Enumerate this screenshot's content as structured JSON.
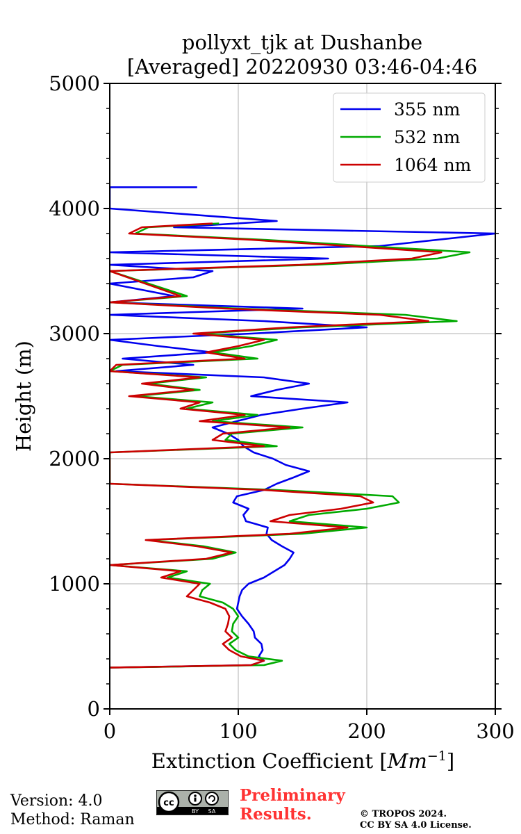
{
  "chart_data": {
    "type": "line",
    "title_line1": "pollyxt_tjk at Dushanbe",
    "title_line2": "[Averaged] 20220930 03:46-04:46",
    "xlabel": "Extinction Coefficient [",
    "xlabel_unit": "Mm",
    "xlabel_exp": "−1",
    "xlabel_close": "]",
    "ylabel": "Height (m)",
    "xlim": [
      0,
      300
    ],
    "ylim": [
      0,
      5000
    ],
    "xticks": [
      0,
      100,
      200,
      300
    ],
    "yticks": [
      0,
      1000,
      2000,
      3000,
      4000,
      5000
    ],
    "xtick_labels": [
      "0",
      "100",
      "200",
      "300"
    ],
    "ytick_labels": [
      "0",
      "1000",
      "2000",
      "3000",
      "4000",
      "5000"
    ],
    "grid": true,
    "legend_position": "top-right",
    "series": [
      {
        "name": "355 nm",
        "color": "#0000ee",
        "points": [
          [
            0,
            330
          ],
          [
            110,
            350
          ],
          [
            120,
            385
          ],
          [
            116,
            420
          ],
          [
            119,
            470
          ],
          [
            118,
            520
          ],
          [
            113,
            570
          ],
          [
            112,
            620
          ],
          [
            108,
            680
          ],
          [
            103,
            740
          ],
          [
            99,
            800
          ],
          [
            100,
            850
          ],
          [
            101,
            900
          ],
          [
            103,
            950
          ],
          [
            108,
            1000
          ],
          [
            120,
            1050
          ],
          [
            128,
            1100
          ],
          [
            136,
            1150
          ],
          [
            140,
            1200
          ],
          [
            143,
            1250
          ],
          [
            134,
            1300
          ],
          [
            126,
            1350
          ],
          [
            122,
            1400
          ],
          [
            123,
            1450
          ],
          [
            113,
            1480
          ],
          [
            106,
            1500
          ],
          [
            104,
            1550
          ],
          [
            108,
            1600
          ],
          [
            96,
            1650
          ],
          [
            99,
            1700
          ],
          [
            120,
            1750
          ],
          [
            130,
            1800
          ],
          [
            143,
            1850
          ],
          [
            155,
            1900
          ],
          [
            137,
            1950
          ],
          [
            127,
            2000
          ],
          [
            112,
            2050
          ],
          [
            104,
            2100
          ],
          [
            100,
            2150
          ],
          [
            92,
            2200
          ],
          [
            80,
            2250
          ],
          [
            99,
            2300
          ],
          [
            118,
            2350
          ],
          [
            150,
            2400
          ],
          [
            185,
            2450
          ],
          [
            110,
            2500
          ],
          [
            130,
            2550
          ],
          [
            155,
            2600
          ],
          [
            120,
            2650
          ],
          [
            5,
            2700
          ],
          [
            65,
            2750
          ],
          [
            10,
            2800
          ],
          [
            80,
            2850
          ],
          [
            38,
            2900
          ],
          [
            0,
            2950
          ],
          [
            110,
            3000
          ],
          [
            200,
            3050
          ],
          [
            120,
            3100
          ],
          [
            0,
            3150
          ],
          [
            150,
            3200
          ],
          [
            0,
            3250
          ],
          [
            50,
            3300
          ],
          [
            0,
            3400
          ],
          [
            65,
            3450
          ],
          [
            80,
            3500
          ],
          [
            0,
            3550
          ],
          [
            170,
            3600
          ],
          [
            0,
            3650
          ],
          [
            210,
            3700
          ],
          [
            300,
            3800
          ],
          [
            50,
            3850
          ],
          [
            130,
            3900
          ],
          [
            0,
            4000
          ],
          [
            0,
            4170
          ],
          [
            68,
            4170
          ]
        ]
      },
      {
        "name": "532 nm",
        "color": "#00aa00",
        "points": [
          [
            0,
            330
          ],
          [
            120,
            350
          ],
          [
            134,
            385
          ],
          [
            108,
            420
          ],
          [
            98,
            470
          ],
          [
            93,
            520
          ],
          [
            100,
            570
          ],
          [
            95,
            620
          ],
          [
            96,
            680
          ],
          [
            100,
            740
          ],
          [
            96,
            800
          ],
          [
            88,
            850
          ],
          [
            70,
            900
          ],
          [
            72,
            950
          ],
          [
            78,
            1000
          ],
          [
            45,
            1050
          ],
          [
            60,
            1100
          ],
          [
            0,
            1150
          ],
          [
            80,
            1200
          ],
          [
            98,
            1250
          ],
          [
            73,
            1300
          ],
          [
            30,
            1350
          ],
          [
            150,
            1400
          ],
          [
            200,
            1450
          ],
          [
            140,
            1500
          ],
          [
            155,
            1550
          ],
          [
            200,
            1600
          ],
          [
            225,
            1650
          ],
          [
            220,
            1700
          ],
          [
            130,
            1750
          ],
          [
            0,
            1800
          ],
          [
            0,
            1850
          ],
          [
            0,
            2050
          ],
          [
            130,
            2100
          ],
          [
            90,
            2150
          ],
          [
            95,
            2200
          ],
          [
            150,
            2250
          ],
          [
            80,
            2300
          ],
          [
            115,
            2350
          ],
          [
            60,
            2400
          ],
          [
            80,
            2450
          ],
          [
            20,
            2500
          ],
          [
            70,
            2550
          ],
          [
            30,
            2600
          ],
          [
            75,
            2650
          ],
          [
            0,
            2700
          ],
          [
            10,
            2750
          ],
          [
            115,
            2800
          ],
          [
            80,
            2850
          ],
          [
            110,
            2900
          ],
          [
            130,
            2950
          ],
          [
            70,
            3000
          ],
          [
            150,
            3050
          ],
          [
            270,
            3100
          ],
          [
            230,
            3150
          ],
          [
            100,
            3200
          ],
          [
            0,
            3250
          ],
          [
            60,
            3300
          ],
          [
            0,
            3500
          ],
          [
            160,
            3550
          ],
          [
            255,
            3600
          ],
          [
            280,
            3650
          ],
          [
            200,
            3700
          ],
          [
            120,
            3750
          ],
          [
            20,
            3800
          ],
          [
            30,
            3850
          ],
          [
            85,
            3880
          ]
        ]
      },
      {
        "name": "1064 nm",
        "color": "#cc0000",
        "points": [
          [
            0,
            330
          ],
          [
            110,
            350
          ],
          [
            120,
            385
          ],
          [
            102,
            420
          ],
          [
            93,
            470
          ],
          [
            88,
            520
          ],
          [
            95,
            570
          ],
          [
            90,
            620
          ],
          [
            92,
            680
          ],
          [
            93,
            740
          ],
          [
            90,
            800
          ],
          [
            78,
            850
          ],
          [
            60,
            900
          ],
          [
            65,
            950
          ],
          [
            70,
            1000
          ],
          [
            40,
            1050
          ],
          [
            55,
            1100
          ],
          [
            0,
            1150
          ],
          [
            75,
            1200
          ],
          [
            95,
            1250
          ],
          [
            68,
            1300
          ],
          [
            28,
            1350
          ],
          [
            140,
            1400
          ],
          [
            185,
            1450
          ],
          [
            125,
            1500
          ],
          [
            140,
            1550
          ],
          [
            180,
            1600
          ],
          [
            205,
            1650
          ],
          [
            195,
            1700
          ],
          [
            120,
            1750
          ],
          [
            0,
            1800
          ],
          [
            0,
            1850
          ],
          [
            0,
            2050
          ],
          [
            120,
            2100
          ],
          [
            80,
            2150
          ],
          [
            88,
            2200
          ],
          [
            140,
            2250
          ],
          [
            70,
            2300
          ],
          [
            105,
            2350
          ],
          [
            55,
            2400
          ],
          [
            70,
            2450
          ],
          [
            15,
            2500
          ],
          [
            65,
            2550
          ],
          [
            25,
            2600
          ],
          [
            70,
            2650
          ],
          [
            0,
            2700
          ],
          [
            5,
            2750
          ],
          [
            105,
            2800
          ],
          [
            75,
            2850
          ],
          [
            100,
            2900
          ],
          [
            120,
            2950
          ],
          [
            65,
            3000
          ],
          [
            140,
            3050
          ],
          [
            248,
            3100
          ],
          [
            210,
            3150
          ],
          [
            90,
            3200
          ],
          [
            0,
            3250
          ],
          [
            55,
            3300
          ],
          [
            0,
            3500
          ],
          [
            148,
            3550
          ],
          [
            235,
            3600
          ],
          [
            258,
            3650
          ],
          [
            185,
            3700
          ],
          [
            110,
            3750
          ],
          [
            15,
            3800
          ],
          [
            25,
            3850
          ],
          [
            80,
            3880
          ]
        ]
      }
    ]
  },
  "footer": {
    "version": "Version: 4.0",
    "method": "Method: Raman",
    "license_badge": "cc by-sa",
    "preliminary_line1": "Preliminary",
    "preliminary_line2": "Results.",
    "copyright_line1": "© TROPOS 2024.",
    "copyright_line2": "CC BY SA 4.0 License."
  }
}
